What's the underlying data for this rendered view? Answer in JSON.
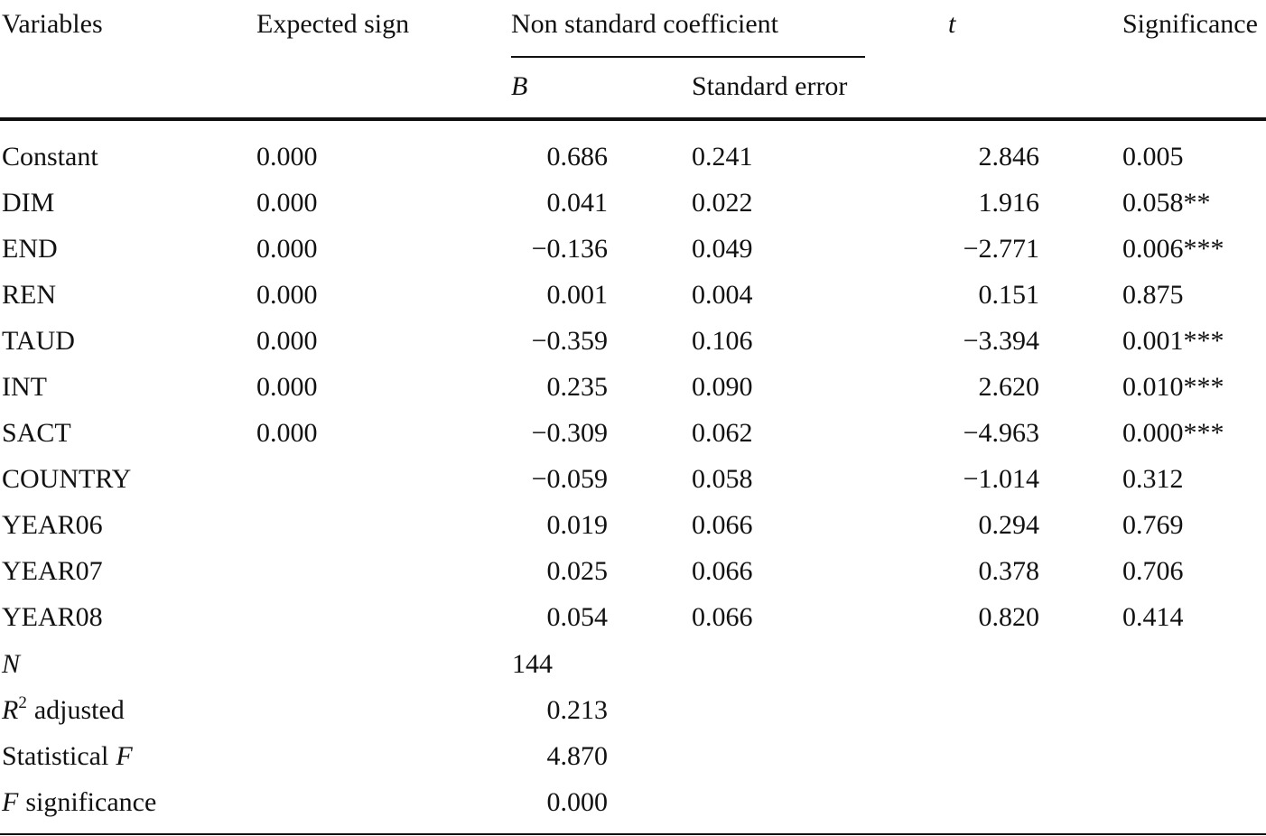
{
  "table": {
    "header": {
      "variables": "Variables",
      "expected_sign": "Expected sign",
      "coefficient": "Non standard coefficient",
      "b": "B",
      "standard_error": "Standard error",
      "t": "t",
      "significance": "Significance"
    },
    "rows": [
      [
        "Constant",
        "0.000",
        "0.686",
        "0.241",
        "2.846",
        "0.005"
      ],
      [
        "DIM",
        "0.000",
        "0.041",
        "0.022",
        "1.916",
        "0.058**"
      ],
      [
        "END",
        "0.000",
        "−0.136",
        "0.049",
        "−2.771",
        "0.006***"
      ],
      [
        "REN",
        "0.000",
        "0.001",
        "0.004",
        "0.151",
        "0.875"
      ],
      [
        "TAUD",
        "0.000",
        "−0.359",
        "0.106",
        "−3.394",
        "0.001***"
      ],
      [
        "INT",
        "0.000",
        "0.235",
        "0.090",
        "2.620",
        "0.010***"
      ],
      [
        "SACT",
        "0.000",
        "−0.309",
        "0.062",
        "−4.963",
        "0.000***"
      ],
      [
        "COUNTRY",
        null,
        "−0.059",
        "0.058",
        "−1.014",
        "0.312"
      ],
      [
        "YEAR06",
        null,
        "0.019",
        "0.066",
        "0.294",
        "0.769"
      ],
      [
        "YEAR07",
        null,
        "0.025",
        "0.066",
        "0.378",
        "0.706"
      ],
      [
        "YEAR08",
        null,
        "0.054",
        "0.066",
        "0.820",
        "0.414"
      ]
    ],
    "stats": [
      {
        "symbol": "N",
        "value": "144"
      },
      {
        "symbol": "R",
        "superscript": "2",
        "text": "adjusted",
        "value": "0.213"
      },
      {
        "text": "Statistical",
        "symbol": "F",
        "value": "4.870"
      },
      {
        "symbol": "F",
        "text": "significance",
        "value": "0.000"
      }
    ]
  }
}
